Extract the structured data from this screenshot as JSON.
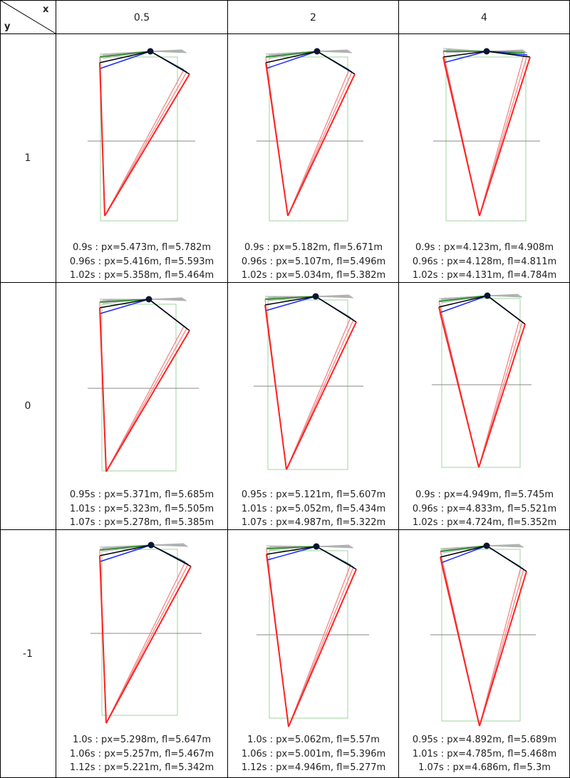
{
  "header": {
    "x_label": "x",
    "y_label": "y"
  },
  "columns": [
    {
      "label": "0.5"
    },
    {
      "label": "2"
    },
    {
      "label": "4"
    }
  ],
  "rows": [
    {
      "label": "1",
      "cells": [
        {
          "lines": [
            "0.9s : px=5.473m, fl=5.782m",
            "0.96s : px=5.416m, fl=5.593m",
            "1.02s : px=5.358m, fl=5.464m"
          ]
        },
        {
          "lines": [
            "0.9s : px=5.182m, fl=5.671m",
            "0.96s : px=5.107m, fl=5.496m",
            "1.02s : px=5.034m, fl=5.382m"
          ]
        },
        {
          "lines": [
            "0.9s : px=4.123m, fl=4.908m",
            "0.96s : px=4.128m, fl=4.811m",
            "1.02s : px=4.131m, fl=4.784m"
          ]
        }
      ]
    },
    {
      "label": "0",
      "cells": [
        {
          "lines": [
            "0.95s : px=5.371m, fl=5.685m",
            "1.01s : px=5.323m, fl=5.505m",
            "1.07s : px=5.278m, fl=5.385m"
          ]
        },
        {
          "lines": [
            "0.95s : px=5.121m, fl=5.607m",
            "1.01s : px=5.052m, fl=5.434m",
            "1.07s : px=4.987m, fl=5.322m"
          ]
        },
        {
          "lines": [
            "0.9s : px=4.949m, fl=5.745m",
            "0.96s : px=4.833m, fl=5.521m",
            "1.02s : px=4.724m, fl=5.352m"
          ]
        }
      ]
    },
    {
      "label": "-1",
      "cells": [
        {
          "lines": [
            "1.0s : px=5.298m, fl=5.647m",
            "1.06s : px=5.257m, fl=5.467m",
            "1.12s : px=5.221m, fl=5.342m"
          ]
        },
        {
          "lines": [
            "1.0s : px=5.062m, fl=5.57m",
            "1.06s : px=5.001m, fl=5.396m",
            "1.12s : px=4.946m, fl=5.277m"
          ]
        },
        {
          "lines": [
            "0.95s : px=4.892m, fl=5.689m",
            "1.01s : px=4.785m, fl=5.468m",
            "1.07s : px=4.686m, fl=5.3m"
          ]
        }
      ]
    }
  ],
  "colors": {
    "border": "#000000",
    "box": "#9fd69f",
    "ground": "#888888",
    "red": "#ff2222",
    "light_red": "#f08080",
    "black": "#000000",
    "green": "#1a8a1a",
    "blue": "#1a2aff",
    "gray_ray": "#b0b0b0"
  }
}
